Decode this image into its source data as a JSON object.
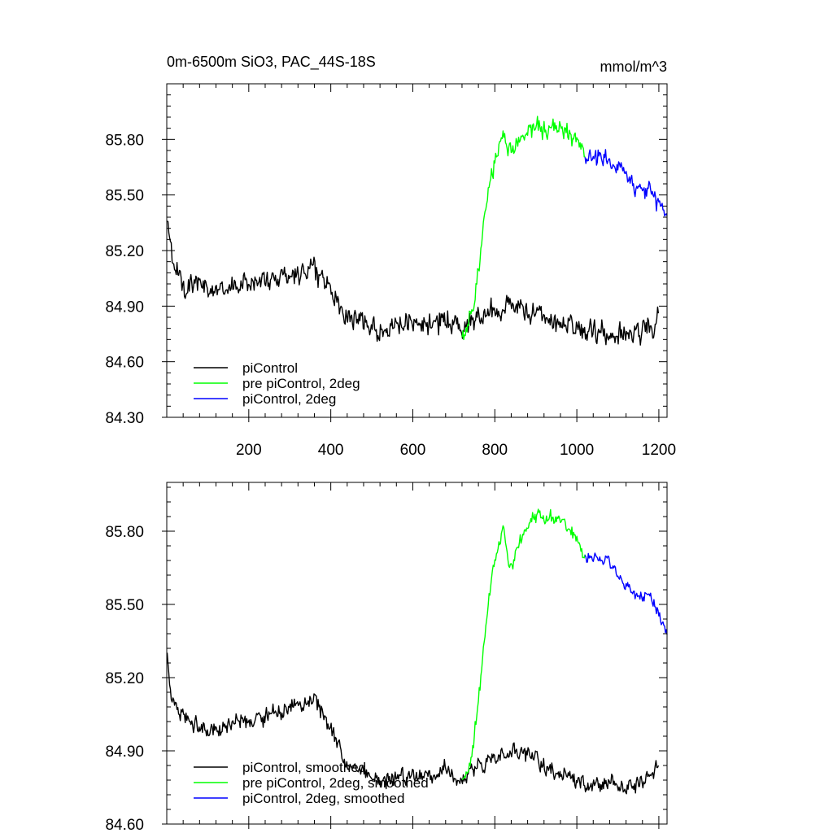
{
  "chart_data": [
    {
      "type": "line",
      "title": "0m-6500m SiO3, PAC_44S-18S",
      "units": "mmol/m^3",
      "xlim": [
        0,
        1220
      ],
      "ylim": [
        84.3,
        86.1
      ],
      "xticks": [
        200,
        400,
        600,
        800,
        1000,
        1200
      ],
      "yticks": [
        84.3,
        84.6,
        84.9,
        85.2,
        85.5,
        85.8
      ],
      "grid": false,
      "legend_position": "bottom-left",
      "series": [
        {
          "name": "piControl",
          "color": "#000000",
          "x_range": [
            1,
            1200
          ],
          "noise": 0.085,
          "anchors": [
            [
              1,
              85.38
            ],
            [
              10,
              85.18
            ],
            [
              40,
              85.03
            ],
            [
              100,
              84.99
            ],
            [
              150,
              85.0
            ],
            [
              200,
              85.03
            ],
            [
              260,
              85.05
            ],
            [
              330,
              85.08
            ],
            [
              360,
              85.12
            ],
            [
              390,
              85.02
            ],
            [
              440,
              84.85
            ],
            [
              520,
              84.78
            ],
            [
              600,
              84.8
            ],
            [
              680,
              84.82
            ],
            [
              720,
              84.78
            ],
            [
              760,
              84.85
            ],
            [
              800,
              84.88
            ],
            [
              850,
              84.9
            ],
            [
              900,
              84.86
            ],
            [
              960,
              84.8
            ],
            [
              1050,
              84.76
            ],
            [
              1150,
              84.76
            ],
            [
              1200,
              84.82
            ]
          ]
        },
        {
          "name": "pre piControl, 2deg",
          "color": "#00ff00",
          "x_range": [
            720,
            1020
          ],
          "noise": 0.075,
          "anchors": [
            [
              720,
              84.75
            ],
            [
              740,
              84.82
            ],
            [
              760,
              85.1
            ],
            [
              780,
              85.45
            ],
            [
              800,
              85.7
            ],
            [
              820,
              85.83
            ],
            [
              840,
              85.72
            ],
            [
              860,
              85.78
            ],
            [
              880,
              85.85
            ],
            [
              900,
              85.87
            ],
            [
              930,
              85.85
            ],
            [
              960,
              85.86
            ],
            [
              980,
              85.82
            ],
            [
              1000,
              85.78
            ],
            [
              1020,
              85.72
            ]
          ]
        },
        {
          "name": "piControl, 2deg",
          "color": "#0000ff",
          "x_range": [
            1020,
            1220
          ],
          "noise": 0.065,
          "anchors": [
            [
              1020,
              85.72
            ],
            [
              1050,
              85.7
            ],
            [
              1080,
              85.68
            ],
            [
              1110,
              85.62
            ],
            [
              1150,
              85.55
            ],
            [
              1180,
              85.52
            ],
            [
              1200,
              85.45
            ],
            [
              1220,
              85.38
            ]
          ]
        }
      ]
    },
    {
      "type": "line",
      "xlim": [
        0,
        1220
      ],
      "ylim": [
        84.6,
        86.0
      ],
      "yticks": [
        84.6,
        84.9,
        85.2,
        85.5,
        85.8
      ],
      "grid": false,
      "legend_position": "bottom-left",
      "series": [
        {
          "name": "piControl, smoothed",
          "color": "#000000",
          "x_range": [
            1,
            1200
          ],
          "noise": 0.045,
          "anchors": [
            [
              1,
              85.3
            ],
            [
              10,
              85.12
            ],
            [
              40,
              85.03
            ],
            [
              100,
              84.98
            ],
            [
              150,
              85.0
            ],
            [
              200,
              85.02
            ],
            [
              260,
              85.05
            ],
            [
              330,
              85.08
            ],
            [
              360,
              85.12
            ],
            [
              390,
              85.02
            ],
            [
              440,
              84.85
            ],
            [
              520,
              84.78
            ],
            [
              600,
              84.8
            ],
            [
              680,
              84.82
            ],
            [
              720,
              84.78
            ],
            [
              760,
              84.85
            ],
            [
              800,
              84.88
            ],
            [
              850,
              84.9
            ],
            [
              900,
              84.86
            ],
            [
              960,
              84.8
            ],
            [
              1050,
              84.76
            ],
            [
              1150,
              84.76
            ],
            [
              1200,
              84.82
            ]
          ]
        },
        {
          "name": "pre piControl, 2deg, smoothed",
          "color": "#00ff00",
          "x_range": [
            720,
            1020
          ],
          "noise": 0.04,
          "anchors": [
            [
              720,
              84.78
            ],
            [
              740,
              84.84
            ],
            [
              760,
              85.1
            ],
            [
              780,
              85.45
            ],
            [
              800,
              85.7
            ],
            [
              820,
              85.8
            ],
            [
              840,
              85.65
            ],
            [
              860,
              85.75
            ],
            [
              880,
              85.84
            ],
            [
              900,
              85.86
            ],
            [
              930,
              85.85
            ],
            [
              960,
              85.86
            ],
            [
              980,
              85.82
            ],
            [
              1000,
              85.77
            ],
            [
              1020,
              85.7
            ]
          ]
        },
        {
          "name": "piControl, 2deg, smoothed",
          "color": "#0000ff",
          "x_range": [
            1020,
            1220
          ],
          "noise": 0.035,
          "anchors": [
            [
              1020,
              85.7
            ],
            [
              1050,
              85.69
            ],
            [
              1080,
              85.66
            ],
            [
              1110,
              85.6
            ],
            [
              1150,
              85.55
            ],
            [
              1180,
              85.52
            ],
            [
              1200,
              85.46
            ],
            [
              1220,
              85.37
            ]
          ]
        }
      ]
    }
  ]
}
